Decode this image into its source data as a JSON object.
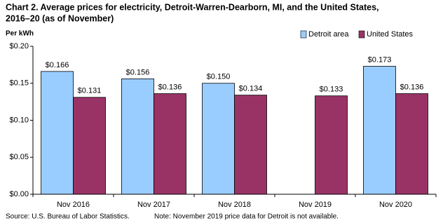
{
  "chart_data": {
    "type": "bar",
    "title": [
      "Chart 2. Average prices for electricity, Detroit-Warren-Dearborn, MI, and the United States,",
      "2016–20  (as of November)"
    ],
    "y_label": "Per kWh",
    "categories": [
      "Nov 2016",
      "Nov 2017",
      "Nov 2018",
      "Nov 2019",
      "Nov 2020"
    ],
    "series": [
      {
        "name": "Detroit area",
        "color": "#99ccff",
        "values": [
          0.166,
          0.156,
          0.15,
          null,
          0.173
        ],
        "value_labels": [
          "$0.166",
          "$0.156",
          "$0.150",
          null,
          "$0.173"
        ]
      },
      {
        "name": "United States",
        "color": "#993366",
        "values": [
          0.131,
          0.136,
          0.134,
          0.133,
          0.136
        ],
        "value_labels": [
          "$0.131",
          "$0.136",
          "$0.134",
          "$0.133",
          "$0.136"
        ]
      }
    ],
    "ylim": [
      0,
      0.2
    ],
    "yticks": [
      {
        "value": 0,
        "label": "$0.00"
      },
      {
        "value": 0.05,
        "label": "$0.05"
      },
      {
        "value": 0.1,
        "label": "$0.10"
      },
      {
        "value": 0.15,
        "label": "$0.15"
      },
      {
        "value": 0.2,
        "label": "$0.20"
      }
    ],
    "grid": false,
    "legend": "top-right",
    "source": "Source: U.S. Bureau of Labor Statistics.",
    "note": "Note: November 2019 price data for Detroit is not available."
  }
}
